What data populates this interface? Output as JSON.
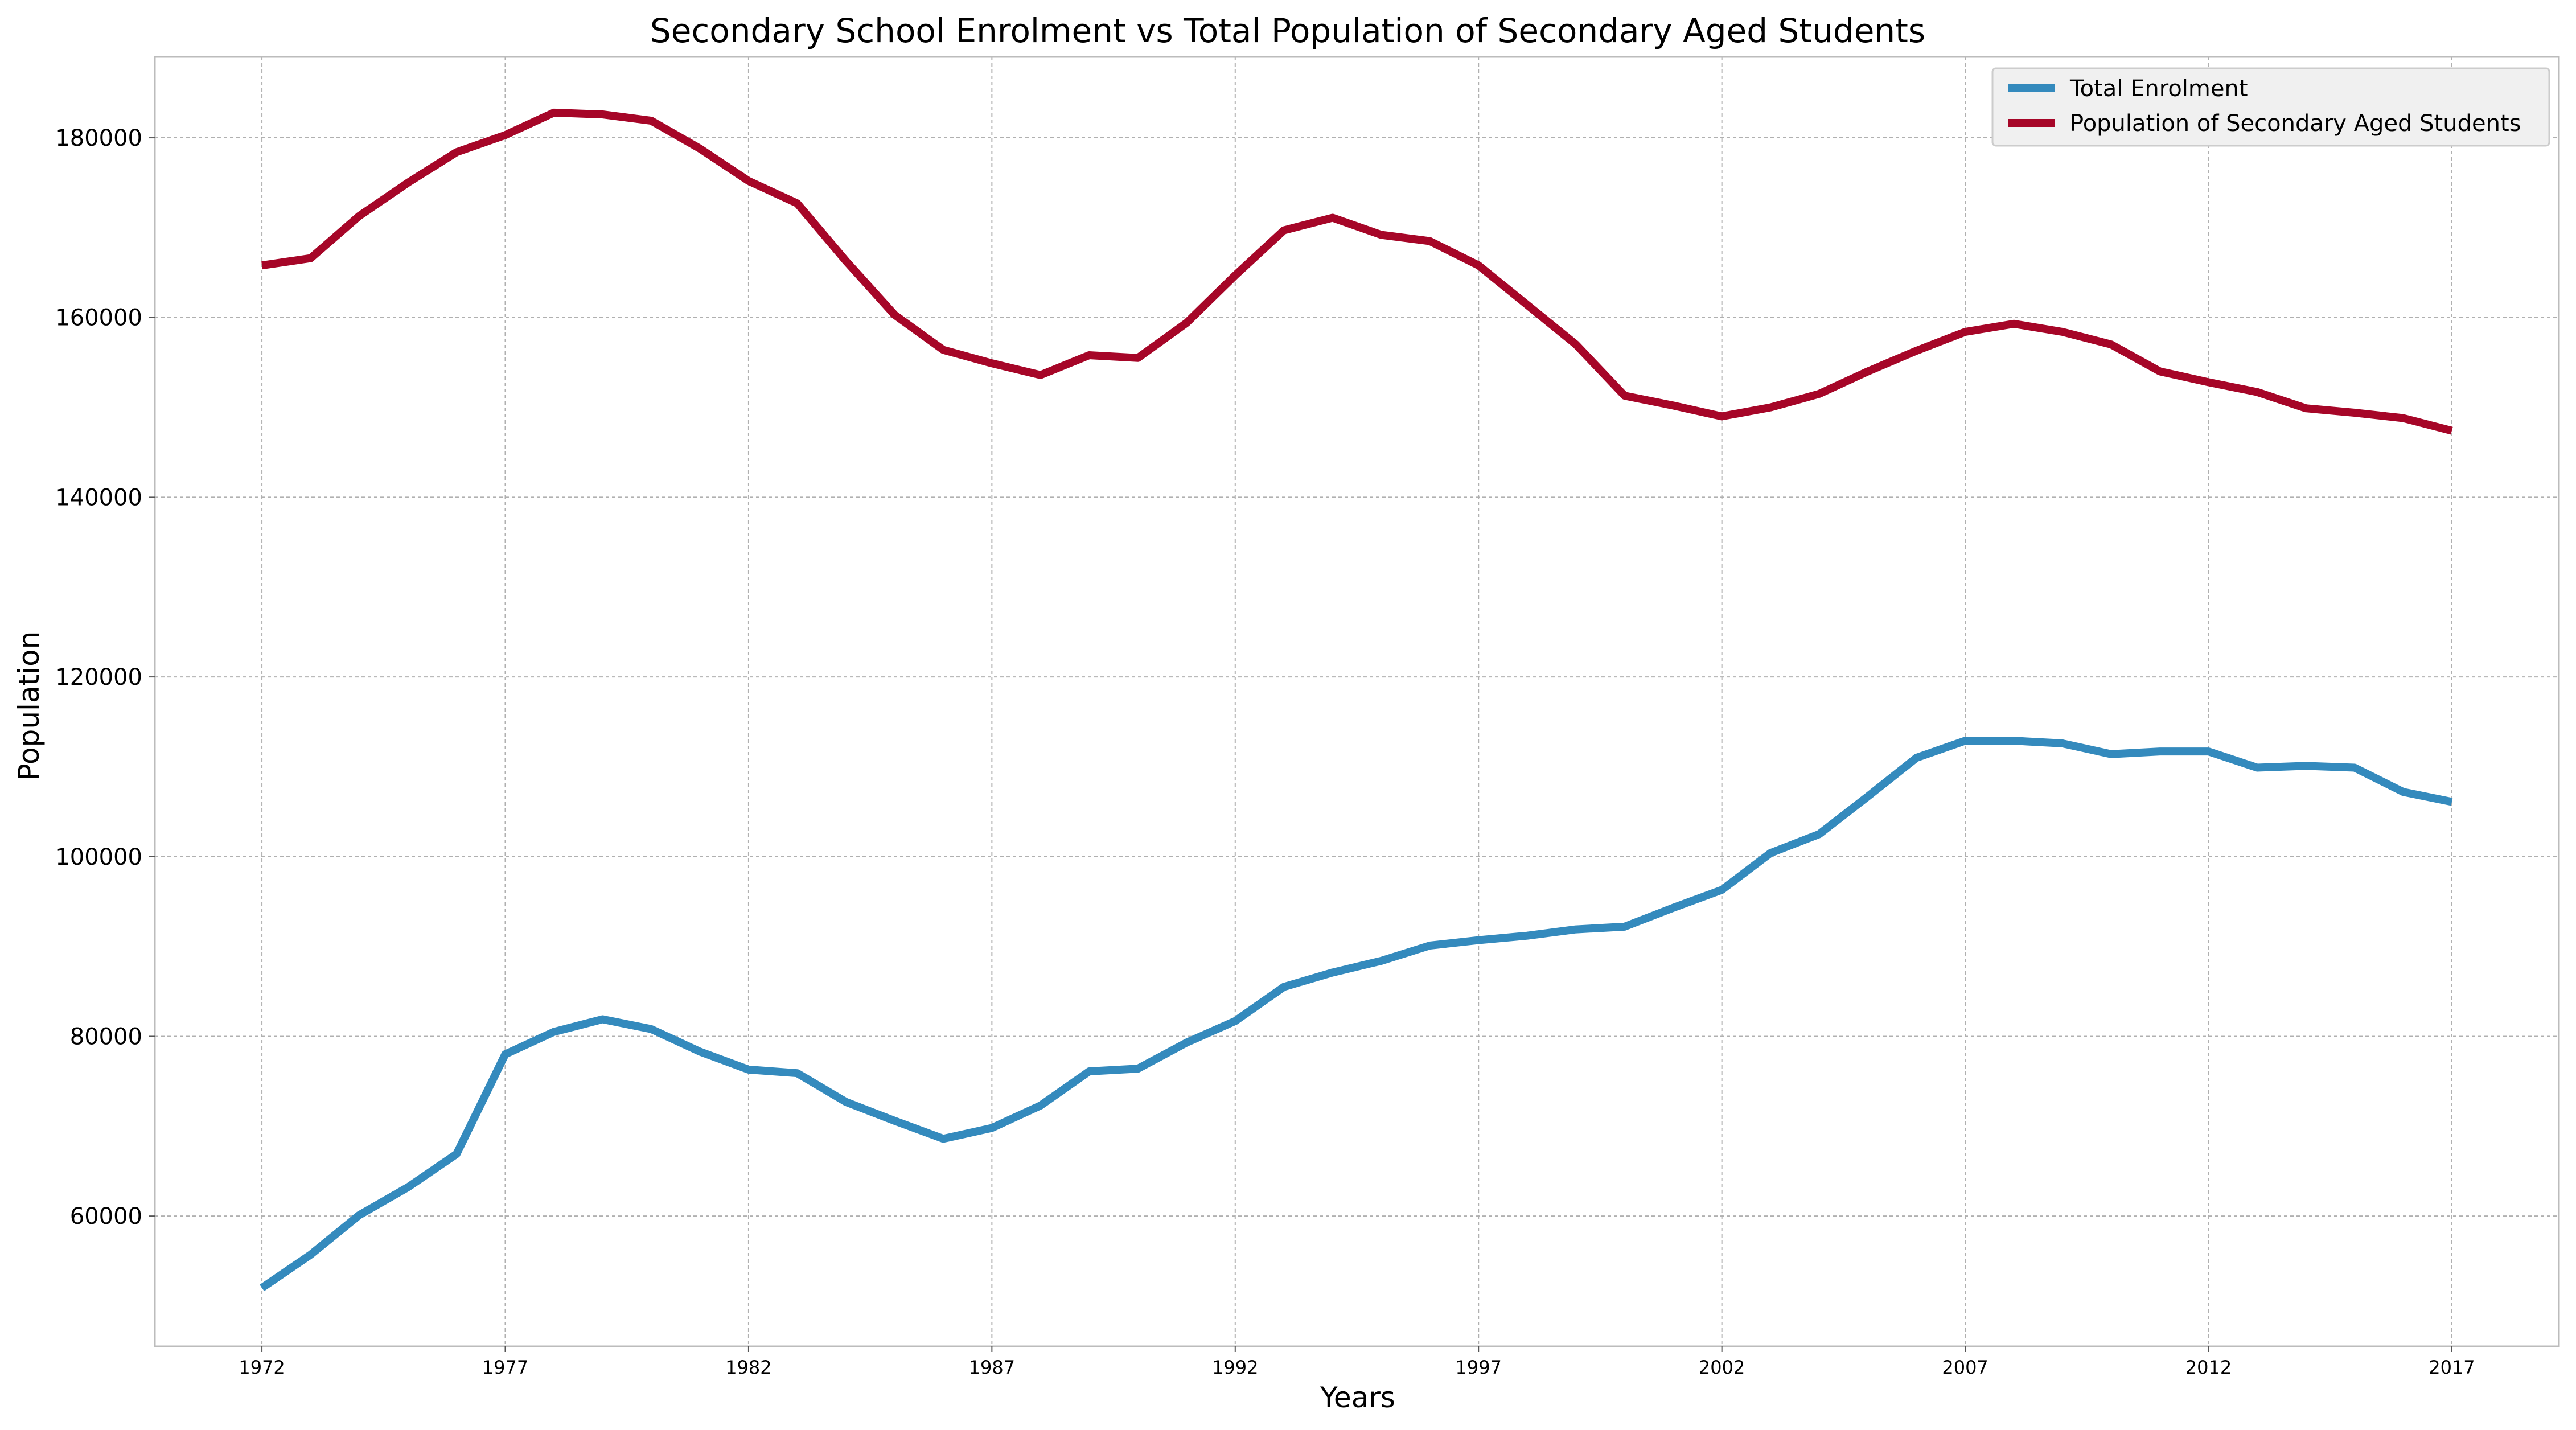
{
  "chart_data": {
    "type": "line",
    "title": "Secondary School Enrolment vs Total Population of Secondary Aged Students",
    "xlabel": "Years",
    "ylabel": "Population",
    "xlim": [
      1969.8,
      2019.2
    ],
    "ylim": [
      45500,
      189000
    ],
    "x_ticks": [
      1972,
      1977,
      1982,
      1987,
      1992,
      1997,
      2002,
      2007,
      2012,
      2017
    ],
    "y_ticks": [
      60000,
      80000,
      100000,
      120000,
      140000,
      160000,
      180000
    ],
    "grid": true,
    "legend_position": "top-right",
    "x": [
      1972,
      1973,
      1974,
      1975,
      1976,
      1977,
      1978,
      1979,
      1980,
      1981,
      1982,
      1983,
      1984,
      1985,
      1986,
      1987,
      1988,
      1989,
      1990,
      1991,
      1992,
      1993,
      1994,
      1995,
      1996,
      1997,
      1998,
      1999,
      2000,
      2001,
      2002,
      2003,
      2004,
      2005,
      2006,
      2007,
      2008,
      2009,
      2010,
      2011,
      2012,
      2013,
      2014,
      2015,
      2016,
      2017
    ],
    "series": [
      {
        "name": "Total Enrolment",
        "color": "#348ABD",
        "values": [
          52000,
          55700,
          60100,
          63200,
          66900,
          78000,
          80500,
          81900,
          80800,
          78300,
          76300,
          75900,
          72700,
          70600,
          68600,
          69800,
          72300,
          76100,
          76400,
          79300,
          81700,
          85500,
          87100,
          88400,
          90100,
          90700,
          91200,
          91900,
          92200,
          94300,
          96300,
          100400,
          102500,
          106700,
          111000,
          112900,
          112900,
          112600,
          111400,
          111700,
          111700,
          109900,
          110100,
          109900,
          107200,
          106100
        ]
      },
      {
        "name": "Population of Secondary Aged Students",
        "color": "#A60628",
        "values": [
          165800,
          166600,
          171300,
          175000,
          178400,
          180300,
          182800,
          182600,
          181900,
          178800,
          175200,
          172700,
          166300,
          160300,
          156400,
          154900,
          153600,
          155800,
          155500,
          159400,
          164700,
          169700,
          171100,
          169200,
          168500,
          165800,
          161400,
          157000,
          151300,
          150200,
          149000,
          150000,
          151500,
          154000,
          156300,
          158400,
          159300,
          158400,
          157000,
          154000,
          152800,
          151700,
          149900,
          149400,
          148800,
          147400
        ]
      }
    ]
  }
}
